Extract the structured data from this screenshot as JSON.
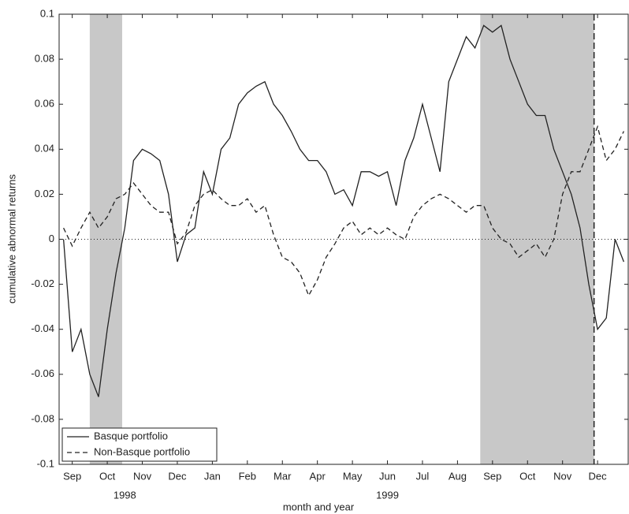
{
  "chart_data": {
    "type": "line",
    "x_label": "month and year",
    "y_label": "cumulative abnormal returns",
    "years": [
      "1998",
      "1999"
    ],
    "categories": [
      null,
      "Sep",
      null,
      null,
      null,
      "Oct",
      null,
      null,
      null,
      "Nov",
      null,
      null,
      null,
      "Dec",
      null,
      null,
      null,
      "Jan",
      null,
      null,
      null,
      "Feb",
      null,
      null,
      null,
      "Mar",
      null,
      null,
      null,
      "Apr",
      null,
      null,
      null,
      "May",
      null,
      null,
      null,
      "Jun",
      null,
      null,
      null,
      "Jul",
      null,
      null,
      null,
      "Aug",
      null,
      null,
      null,
      "Sep",
      null,
      null,
      null,
      "Oct",
      null,
      null,
      null,
      "Nov",
      null,
      null,
      null,
      "Dec",
      null,
      null,
      null
    ],
    "series": [
      {
        "name": "Basque portfolio",
        "color": "#222222",
        "dash": "none",
        "values": [
          0.0,
          -0.05,
          -0.04,
          -0.06,
          -0.07,
          -0.04,
          -0.015,
          0.005,
          0.035,
          0.04,
          0.038,
          0.035,
          0.02,
          -0.01,
          0.002,
          0.005,
          0.03,
          0.02,
          0.04,
          0.045,
          0.06,
          0.065,
          0.068,
          0.07,
          0.06,
          0.055,
          0.048,
          0.04,
          0.035,
          0.035,
          0.03,
          0.02,
          0.022,
          0.015,
          0.03,
          0.03,
          0.028,
          0.03,
          0.015,
          0.035,
          0.045,
          0.06,
          0.045,
          0.03,
          0.07,
          0.08,
          0.09,
          0.085,
          0.095,
          0.092,
          0.095,
          0.08,
          0.07,
          0.06,
          0.055,
          0.055,
          0.04,
          0.03,
          0.02,
          0.005,
          -0.02,
          -0.04,
          -0.035,
          0.0,
          -0.01
        ]
      },
      {
        "name": "Non-Basque portfolio",
        "color": "#222222",
        "dash": "6 4",
        "values": [
          0.005,
          -0.003,
          0.005,
          0.012,
          0.005,
          0.01,
          0.018,
          0.02,
          0.025,
          0.02,
          0.015,
          0.012,
          0.012,
          -0.002,
          0.003,
          0.015,
          0.02,
          0.022,
          0.018,
          0.015,
          0.015,
          0.018,
          0.012,
          0.015,
          0.002,
          -0.008,
          -0.01,
          -0.015,
          -0.025,
          -0.018,
          -0.008,
          -0.002,
          0.005,
          0.008,
          0.002,
          0.005,
          0.002,
          0.005,
          0.002,
          0.0,
          0.01,
          0.015,
          0.018,
          0.02,
          0.018,
          0.015,
          0.012,
          0.015,
          0.015,
          0.005,
          0.0,
          -0.002,
          -0.008,
          -0.005,
          -0.002,
          -0.008,
          0.0,
          0.02,
          0.03,
          0.03,
          0.04,
          0.05,
          0.035,
          0.04,
          0.048
        ]
      }
    ],
    "highlight_spans": [
      [
        3,
        6.7
      ],
      [
        47.6,
        60.6
      ]
    ],
    "highlight_color": "#c8c8c8",
    "ylim": [
      -0.1,
      0.1
    ],
    "yticks": [
      -0.1,
      -0.08,
      -0.06,
      -0.04,
      -0.02,
      0,
      0.02,
      0.04,
      0.06,
      0.08,
      0.1
    ],
    "zero_line": true,
    "legend": "lower left"
  }
}
